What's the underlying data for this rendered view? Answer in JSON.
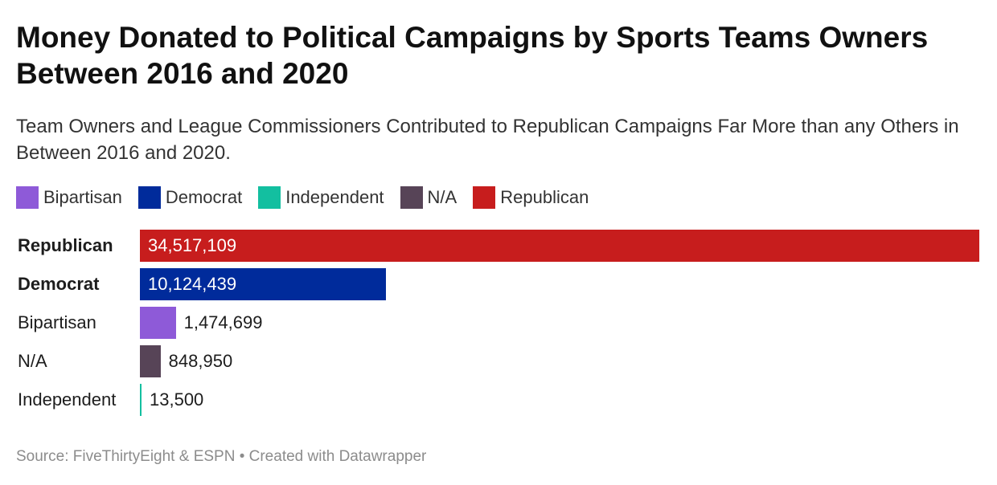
{
  "title": "Money Donated to Political Campaigns by Sports Teams Owners Between 2016 and 2020",
  "subtitle": "Team Owners and League Commissioners Contributed to Republican Campaigns Far More than any Others in Between 2016 and 2020.",
  "footer": "Source: FiveThirtyEight & ESPN • Created with Datawrapper",
  "legend": [
    {
      "label": "Bipartisan",
      "color": "#8e5ad8"
    },
    {
      "label": "Democrat",
      "color": "#002b9b"
    },
    {
      "label": "Independent",
      "color": "#13bfa0"
    },
    {
      "label": "N/A",
      "color": "#574457"
    },
    {
      "label": "Republican",
      "color": "#c71d1d"
    }
  ],
  "chart_data": {
    "type": "bar",
    "orientation": "horizontal",
    "categories": [
      "Republican",
      "Democrat",
      "Bipartisan",
      "N/A",
      "Independent"
    ],
    "values": [
      34517109,
      10124439,
      1474699,
      848950,
      13500
    ],
    "value_labels": [
      "34,517,109",
      "10,124,439",
      "1,474,699",
      "848,950",
      "13,500"
    ],
    "colors": [
      "#c71d1d",
      "#002b9b",
      "#8e5ad8",
      "#574457",
      "#13bfa0"
    ],
    "bold_categories": [
      "Republican",
      "Democrat"
    ],
    "xlim": [
      0,
      34517109
    ],
    "grid": false,
    "legend_position": "top-left"
  }
}
